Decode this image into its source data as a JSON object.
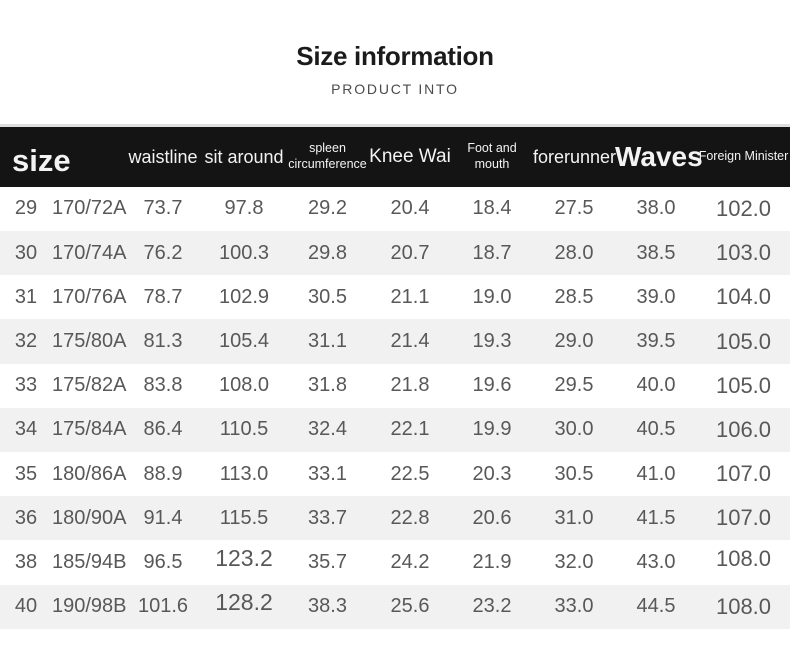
{
  "page": {
    "title": "Size information",
    "subtitle": "PRODUCT INTO"
  },
  "table": {
    "headers": {
      "size": "size",
      "waistline": "waistline",
      "sit_around": "sit around",
      "spleen_circumference": "spleen circumference",
      "knee_wai": "Knee Wai",
      "foot_and_mouth": "Foot and mouth",
      "forerunner": "forerunner",
      "waves": "Waves",
      "foreign_minister": "Foreign Minister"
    },
    "rows": [
      [
        "29",
        "170/72A",
        "73.7",
        "97.8",
        "29.2",
        "20.4",
        "18.4",
        "27.5",
        "38.0",
        "102.0"
      ],
      [
        "30",
        "170/74A",
        "76.2",
        "100.3",
        "29.8",
        "20.7",
        "18.7",
        "28.0",
        "38.5",
        "103.0"
      ],
      [
        "31",
        "170/76A",
        "78.7",
        "102.9",
        "30.5",
        "21.1",
        "19.0",
        "28.5",
        "39.0",
        "104.0"
      ],
      [
        "32",
        "175/80A",
        "81.3",
        "105.4",
        "31.1",
        "21.4",
        "19.3",
        "29.0",
        "39.5",
        "105.0"
      ],
      [
        "33",
        "175/82A",
        "83.8",
        "108.0",
        "31.8",
        "21.8",
        "19.6",
        "29.5",
        "40.0",
        "105.0"
      ],
      [
        "34",
        "175/84A",
        "86.4",
        "110.5",
        "32.4",
        "22.1",
        "19.9",
        "30.0",
        "40.5",
        "106.0"
      ],
      [
        "35",
        "180/86A",
        "88.9",
        "113.0",
        "33.1",
        "22.5",
        "20.3",
        "30.5",
        "41.0",
        "107.0"
      ],
      [
        "36",
        "180/90A",
        "91.4",
        "115.5",
        "33.7",
        "22.8",
        "20.6",
        "31.0",
        "41.5",
        "107.0"
      ],
      [
        "38",
        "185/94B",
        "96.5",
        "123.2",
        "35.7",
        "24.2",
        "21.9",
        "32.0",
        "43.0",
        "108.0"
      ],
      [
        "40",
        "190/98B",
        "101.6",
        "128.2",
        "38.3",
        "25.6",
        "23.2",
        "33.0",
        "44.5",
        "108.0"
      ]
    ]
  },
  "colors": {
    "header_bg": "#141414",
    "header_text": "#f3f3f3",
    "row_stripe": "#f1f1f1",
    "data_text": "#58585a",
    "title_text": "#1b1b1b",
    "subtitle_text": "#4b4b4b"
  }
}
